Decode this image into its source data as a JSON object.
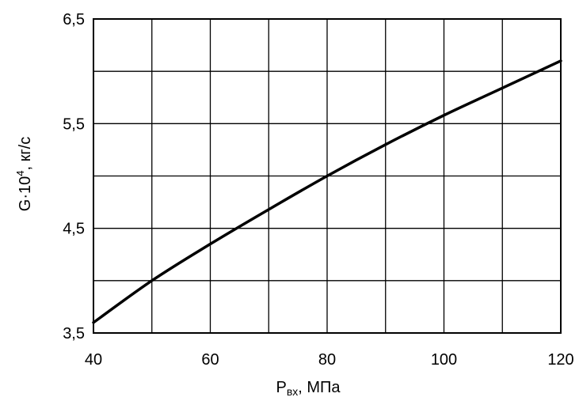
{
  "chart_data": {
    "type": "line",
    "title": "",
    "xlabel": {
      "main": "P",
      "sub": "вх",
      "unit": ", МПа"
    },
    "ylabel": {
      "main": "G·10",
      "sup": "4",
      "unit": ", кг/с"
    },
    "xlim": [
      40,
      120
    ],
    "ylim": [
      3.5,
      6.5
    ],
    "x_ticks": [
      40,
      60,
      80,
      100,
      120
    ],
    "y_ticks": [
      3.5,
      4.5,
      5.5,
      6.5
    ],
    "x_tick_labels": [
      "40",
      "60",
      "80",
      "100",
      "120"
    ],
    "y_tick_labels": [
      "3,5",
      "4,5",
      "5,5",
      "6,5"
    ],
    "grid": true,
    "x_grid_step": 10,
    "y_grid_step": 0.5,
    "series": [
      {
        "x": [
          40,
          50,
          60,
          70,
          80,
          90,
          100,
          110,
          120
        ],
        "y": [
          3.6,
          4.0,
          4.35,
          4.68,
          5.0,
          5.3,
          5.58,
          5.84,
          6.1
        ]
      }
    ]
  }
}
